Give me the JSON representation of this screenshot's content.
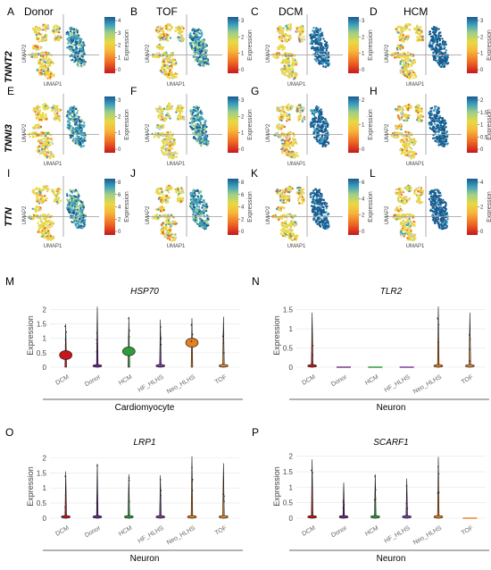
{
  "colors": {
    "scale": [
      "#c8161d",
      "#f06a24",
      "#f6b93b",
      "#e9d843",
      "#9fcf86",
      "#3d9fbd",
      "#1a5a8f"
    ],
    "grey": "#c9c9c9",
    "violins": [
      "#c8161d",
      "#6b2a8c",
      "#2e9c3a",
      "#7b3fa0",
      "#e67e22",
      "#e68a2e"
    ]
  },
  "header": {
    "columns": [
      "Donor",
      "TOF",
      "DCM",
      "HCM"
    ],
    "genes": [
      "TNNT2",
      "TNNI3",
      "TTN"
    ]
  },
  "umap": {
    "x_label": "UMAP1",
    "y_label": "UMAP2",
    "legend_title": "Expression",
    "panels": [
      {
        "letter": "A",
        "ticks": [
          "4",
          "3",
          "2",
          "1",
          "0"
        ]
      },
      {
        "letter": "B",
        "ticks": [
          "3",
          "2",
          "1",
          "0"
        ]
      },
      {
        "letter": "C",
        "ticks": [
          "3",
          "2",
          "1",
          "0"
        ]
      },
      {
        "letter": "D",
        "ticks": [
          "3",
          "2",
          "1",
          "0"
        ]
      },
      {
        "letter": "E",
        "ticks": [
          "3",
          "2",
          "1",
          "0"
        ]
      },
      {
        "letter": "F",
        "ticks": [
          "3",
          "2",
          "1",
          "0"
        ]
      },
      {
        "letter": "G",
        "ticks": [
          "2",
          "1",
          "0"
        ]
      },
      {
        "letter": "H",
        "ticks": [
          "2",
          "1.5",
          "1",
          "0.5",
          "0"
        ]
      },
      {
        "letter": "I",
        "ticks": [
          "8",
          "6",
          "4",
          "2",
          "0"
        ]
      },
      {
        "letter": "J",
        "ticks": [
          "8",
          "6",
          "4",
          "2",
          "0"
        ]
      },
      {
        "letter": "K",
        "ticks": [
          "6",
          "4",
          "2",
          "0"
        ]
      },
      {
        "letter": "L",
        "ticks": [
          "4",
          "2",
          "0"
        ]
      }
    ]
  },
  "chart_data": [
    {
      "type": "violin",
      "letter": "M",
      "title": "HSP70",
      "group_label": "Cardiomyocyte",
      "ylabel": "Expression",
      "ylim": [
        0,
        2.2
      ],
      "yticks": [
        0,
        0.5,
        1,
        1.5,
        2
      ],
      "categories": [
        "DCM",
        "Donor",
        "HCM",
        "HF_HLHS",
        "Neo_HLHS",
        "TOF"
      ],
      "max_values": [
        1.5,
        2.1,
        1.75,
        1.65,
        1.7,
        1.75
      ],
      "bulge_center": [
        0.42,
        0.02,
        0.55,
        0.05,
        0.85,
        0.05
      ]
    },
    {
      "type": "violin",
      "letter": "N",
      "title": "TLR2",
      "group_label": "Neuron",
      "ylabel": "Expression",
      "ylim": [
        0,
        1.65
      ],
      "yticks": [
        0,
        0.5,
        1,
        1.5
      ],
      "categories": [
        "DCM",
        "Donor",
        "HCM",
        "HF_HLHS",
        "Neo_HLHS",
        "TOF"
      ],
      "max_values": [
        1.42,
        0,
        0,
        0,
        1.58,
        1.42
      ],
      "bulge_center": [
        0.02,
        0,
        0,
        0,
        0.02,
        0.02
      ]
    },
    {
      "type": "violin",
      "letter": "O",
      "title": "LRP1",
      "group_label": "Neuron",
      "ylabel": "Expression",
      "ylim": [
        0,
        2.1
      ],
      "yticks": [
        0,
        0.5,
        1,
        1.5,
        2
      ],
      "categories": [
        "DCM",
        "Donor",
        "HCM",
        "HF_HLHS",
        "Neo_HLHS",
        "TOF"
      ],
      "max_values": [
        1.55,
        1.8,
        1.45,
        1.42,
        2.05,
        1.82
      ],
      "bulge_center": [
        0.02,
        0.02,
        0.02,
        0.02,
        0.02,
        0.02
      ]
    },
    {
      "type": "violin",
      "letter": "P",
      "title": "SCARF1",
      "group_label": "Neuron",
      "ylabel": "Expression",
      "ylim": [
        0,
        2.05
      ],
      "yticks": [
        0,
        0.5,
        1,
        1.5,
        2
      ],
      "categories": [
        "DCM",
        "Donor",
        "HCM",
        "HF_HLHS",
        "Neo_HLHS",
        "TOF"
      ],
      "max_values": [
        1.9,
        1.15,
        1.42,
        1.28,
        1.98,
        0
      ],
      "bulge_center": [
        0.02,
        0.02,
        0.02,
        0.02,
        0.02,
        0
      ]
    }
  ]
}
